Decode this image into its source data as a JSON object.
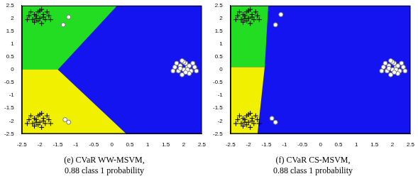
{
  "chart_data": [
    {
      "type": "scatter",
      "caption": [
        "(e) CVaR WW-MSVM,",
        "0.88 class 1 probability"
      ],
      "xlim": [
        -2.5,
        2.5
      ],
      "ylim": [
        -2.5,
        2.5
      ],
      "xticks": [
        -2.5,
        -2,
        -1.5,
        -1,
        -0.5,
        0,
        0.5,
        1,
        1.5,
        2,
        2.5
      ],
      "yticks": [
        -2.5,
        -2,
        -1.5,
        -1,
        -0.5,
        0,
        0.5,
        1,
        1.5,
        2,
        2.5
      ],
      "grid": false,
      "regions": [
        {
          "color": "#1414f0",
          "x": [
            -2.5,
            2.5,
            2.5,
            -2.5
          ],
          "y": [
            -2.5,
            -2.5,
            2.5,
            2.5
          ]
        },
        {
          "color": "#22dd22",
          "x": [
            -2.5,
            -1.5,
            0.15,
            -2.5
          ],
          "y": [
            0,
            0,
            2.5,
            2.5
          ]
        },
        {
          "color": "#f0f000",
          "x": [
            -2.5,
            0.4,
            -1.5,
            -2.5
          ],
          "y": [
            -2.5,
            -2.5,
            0,
            0
          ]
        }
      ],
      "series": [
        {
          "marker": "plus",
          "color": "#000000",
          "values": [
            [
              -2.0,
              2.0
            ],
            [
              -2.1,
              2.1
            ],
            [
              -1.9,
              2.15
            ],
            [
              -2.2,
              1.95
            ],
            [
              -1.85,
              1.95
            ],
            [
              -2.05,
              2.25
            ],
            [
              -2.15,
              1.85
            ],
            [
              -1.95,
              1.8
            ],
            [
              -2.3,
              2.1
            ],
            [
              -1.75,
              2.1
            ],
            [
              -2.0,
              2.3
            ],
            [
              -2.1,
              2.0
            ],
            [
              -1.9,
              2.05
            ],
            [
              -2.25,
              2.25
            ],
            [
              -1.8,
              2.25
            ],
            [
              -2.05,
              1.9
            ],
            [
              -2.35,
              1.95
            ],
            [
              -1.95,
              2.35
            ],
            [
              -2.15,
              2.15
            ],
            [
              -1.7,
              1.95
            ],
            [
              -2.0,
              -2.05
            ],
            [
              -2.1,
              -1.95
            ],
            [
              -1.9,
              -1.9
            ],
            [
              -2.2,
              -2.1
            ],
            [
              -1.85,
              -2.1
            ],
            [
              -2.05,
              -1.8
            ],
            [
              -2.15,
              -2.2
            ],
            [
              -1.95,
              -2.25
            ],
            [
              -2.3,
              -1.95
            ],
            [
              -1.75,
              -1.95
            ],
            [
              -2.0,
              -1.75
            ],
            [
              -2.1,
              -2.05
            ],
            [
              -1.9,
              -2.0
            ],
            [
              -2.25,
              -1.8
            ],
            [
              -1.8,
              -1.8
            ],
            [
              -2.05,
              -2.15
            ],
            [
              -2.35,
              -2.1
            ],
            [
              -1.95,
              -1.7
            ],
            [
              -2.15,
              -1.9
            ],
            [
              -1.7,
              -2.1
            ]
          ]
        },
        {
          "marker": "circle",
          "color": "#ffffff",
          "values": [
            [
              2.0,
              0.0
            ],
            [
              2.1,
              0.1
            ],
            [
              1.9,
              0.15
            ],
            [
              2.2,
              -0.05
            ],
            [
              1.85,
              -0.05
            ],
            [
              2.05,
              0.25
            ],
            [
              2.15,
              -0.15
            ],
            [
              1.95,
              -0.2
            ],
            [
              2.3,
              0.1
            ],
            [
              1.75,
              0.1
            ],
            [
              2.0,
              0.3
            ],
            [
              2.1,
              0.0
            ],
            [
              1.9,
              0.05
            ],
            [
              2.25,
              0.25
            ],
            [
              1.8,
              0.25
            ],
            [
              2.05,
              -0.1
            ],
            [
              2.35,
              -0.05
            ],
            [
              1.95,
              0.35
            ],
            [
              2.15,
              0.15
            ],
            [
              1.7,
              -0.05
            ],
            [
              -1.2,
              2.05
            ],
            [
              -1.35,
              1.75
            ],
            [
              -1.3,
              -1.95
            ],
            [
              -1.2,
              -2.05
            ]
          ]
        }
      ]
    },
    {
      "type": "scatter",
      "caption": [
        "(f) CVaR CS-MSVM,",
        "0.88 class 1 probability"
      ],
      "xlim": [
        -2.5,
        2.5
      ],
      "ylim": [
        -2.5,
        2.5
      ],
      "xticks": [
        -2.5,
        -2,
        -1.5,
        -1,
        -0.5,
        0,
        0.5,
        1,
        1.5,
        2,
        2.5
      ],
      "yticks": [
        -2.5,
        -2,
        -1.5,
        -1,
        -0.5,
        0,
        0.5,
        1,
        1.5,
        2,
        2.5
      ],
      "grid": false,
      "regions": [
        {
          "color": "#1414f0",
          "x": [
            -2.5,
            2.5,
            2.5,
            -2.5
          ],
          "y": [
            -2.5,
            -2.5,
            2.5,
            2.5
          ]
        },
        {
          "color": "#22dd22",
          "x": [
            -2.5,
            -1.45,
            -1.55,
            -2.5
          ],
          "y": [
            2.5,
            2.5,
            0.1,
            0.1
          ]
        },
        {
          "color": "#f0f000",
          "x": [
            -2.5,
            -1.55,
            -1.75,
            -2.5
          ],
          "y": [
            0.1,
            0.1,
            -2.5,
            -2.5
          ]
        }
      ],
      "series": [
        {
          "marker": "plus",
          "color": "#000000",
          "values": [
            [
              -2.0,
              2.0
            ],
            [
              -2.1,
              2.1
            ],
            [
              -1.9,
              2.15
            ],
            [
              -2.2,
              1.95
            ],
            [
              -1.85,
              1.95
            ],
            [
              -2.05,
              2.25
            ],
            [
              -2.15,
              1.85
            ],
            [
              -1.95,
              1.8
            ],
            [
              -2.3,
              2.1
            ],
            [
              -1.75,
              2.1
            ],
            [
              -2.0,
              2.3
            ],
            [
              -2.1,
              2.0
            ],
            [
              -1.9,
              2.05
            ],
            [
              -2.25,
              2.25
            ],
            [
              -1.8,
              2.25
            ],
            [
              -2.05,
              1.9
            ],
            [
              -2.35,
              1.95
            ],
            [
              -1.95,
              2.35
            ],
            [
              -2.15,
              2.15
            ],
            [
              -1.7,
              1.95
            ],
            [
              -2.0,
              -2.05
            ],
            [
              -2.1,
              -1.95
            ],
            [
              -1.9,
              -1.9
            ],
            [
              -2.2,
              -2.1
            ],
            [
              -1.85,
              -2.1
            ],
            [
              -2.05,
              -1.8
            ],
            [
              -2.15,
              -2.2
            ],
            [
              -1.95,
              -2.25
            ],
            [
              -2.3,
              -1.95
            ],
            [
              -1.75,
              -1.95
            ],
            [
              -2.0,
              -1.75
            ],
            [
              -2.1,
              -2.05
            ],
            [
              -1.9,
              -2.0
            ],
            [
              -2.25,
              -1.8
            ],
            [
              -1.8,
              -1.8
            ],
            [
              -2.05,
              -2.15
            ],
            [
              -2.35,
              -2.1
            ],
            [
              -1.95,
              -1.7
            ],
            [
              -2.15,
              -1.9
            ],
            [
              -1.7,
              -2.1
            ]
          ]
        },
        {
          "marker": "circle",
          "color": "#ffffff",
          "values": [
            [
              2.0,
              0.0
            ],
            [
              2.1,
              0.1
            ],
            [
              1.9,
              0.15
            ],
            [
              2.2,
              -0.05
            ],
            [
              1.85,
              -0.05
            ],
            [
              2.05,
              0.25
            ],
            [
              2.15,
              -0.15
            ],
            [
              1.95,
              -0.2
            ],
            [
              2.3,
              0.1
            ],
            [
              1.75,
              0.1
            ],
            [
              2.0,
              0.3
            ],
            [
              2.1,
              0.0
            ],
            [
              1.9,
              0.05
            ],
            [
              2.25,
              0.25
            ],
            [
              1.8,
              0.25
            ],
            [
              2.05,
              -0.1
            ],
            [
              2.35,
              -0.05
            ],
            [
              1.95,
              0.35
            ],
            [
              2.15,
              0.15
            ],
            [
              1.7,
              -0.05
            ],
            [
              -1.1,
              2.15
            ],
            [
              -1.25,
              1.75
            ],
            [
              -1.35,
              -1.9
            ],
            [
              -1.25,
              -2.05
            ]
          ]
        }
      ]
    }
  ]
}
